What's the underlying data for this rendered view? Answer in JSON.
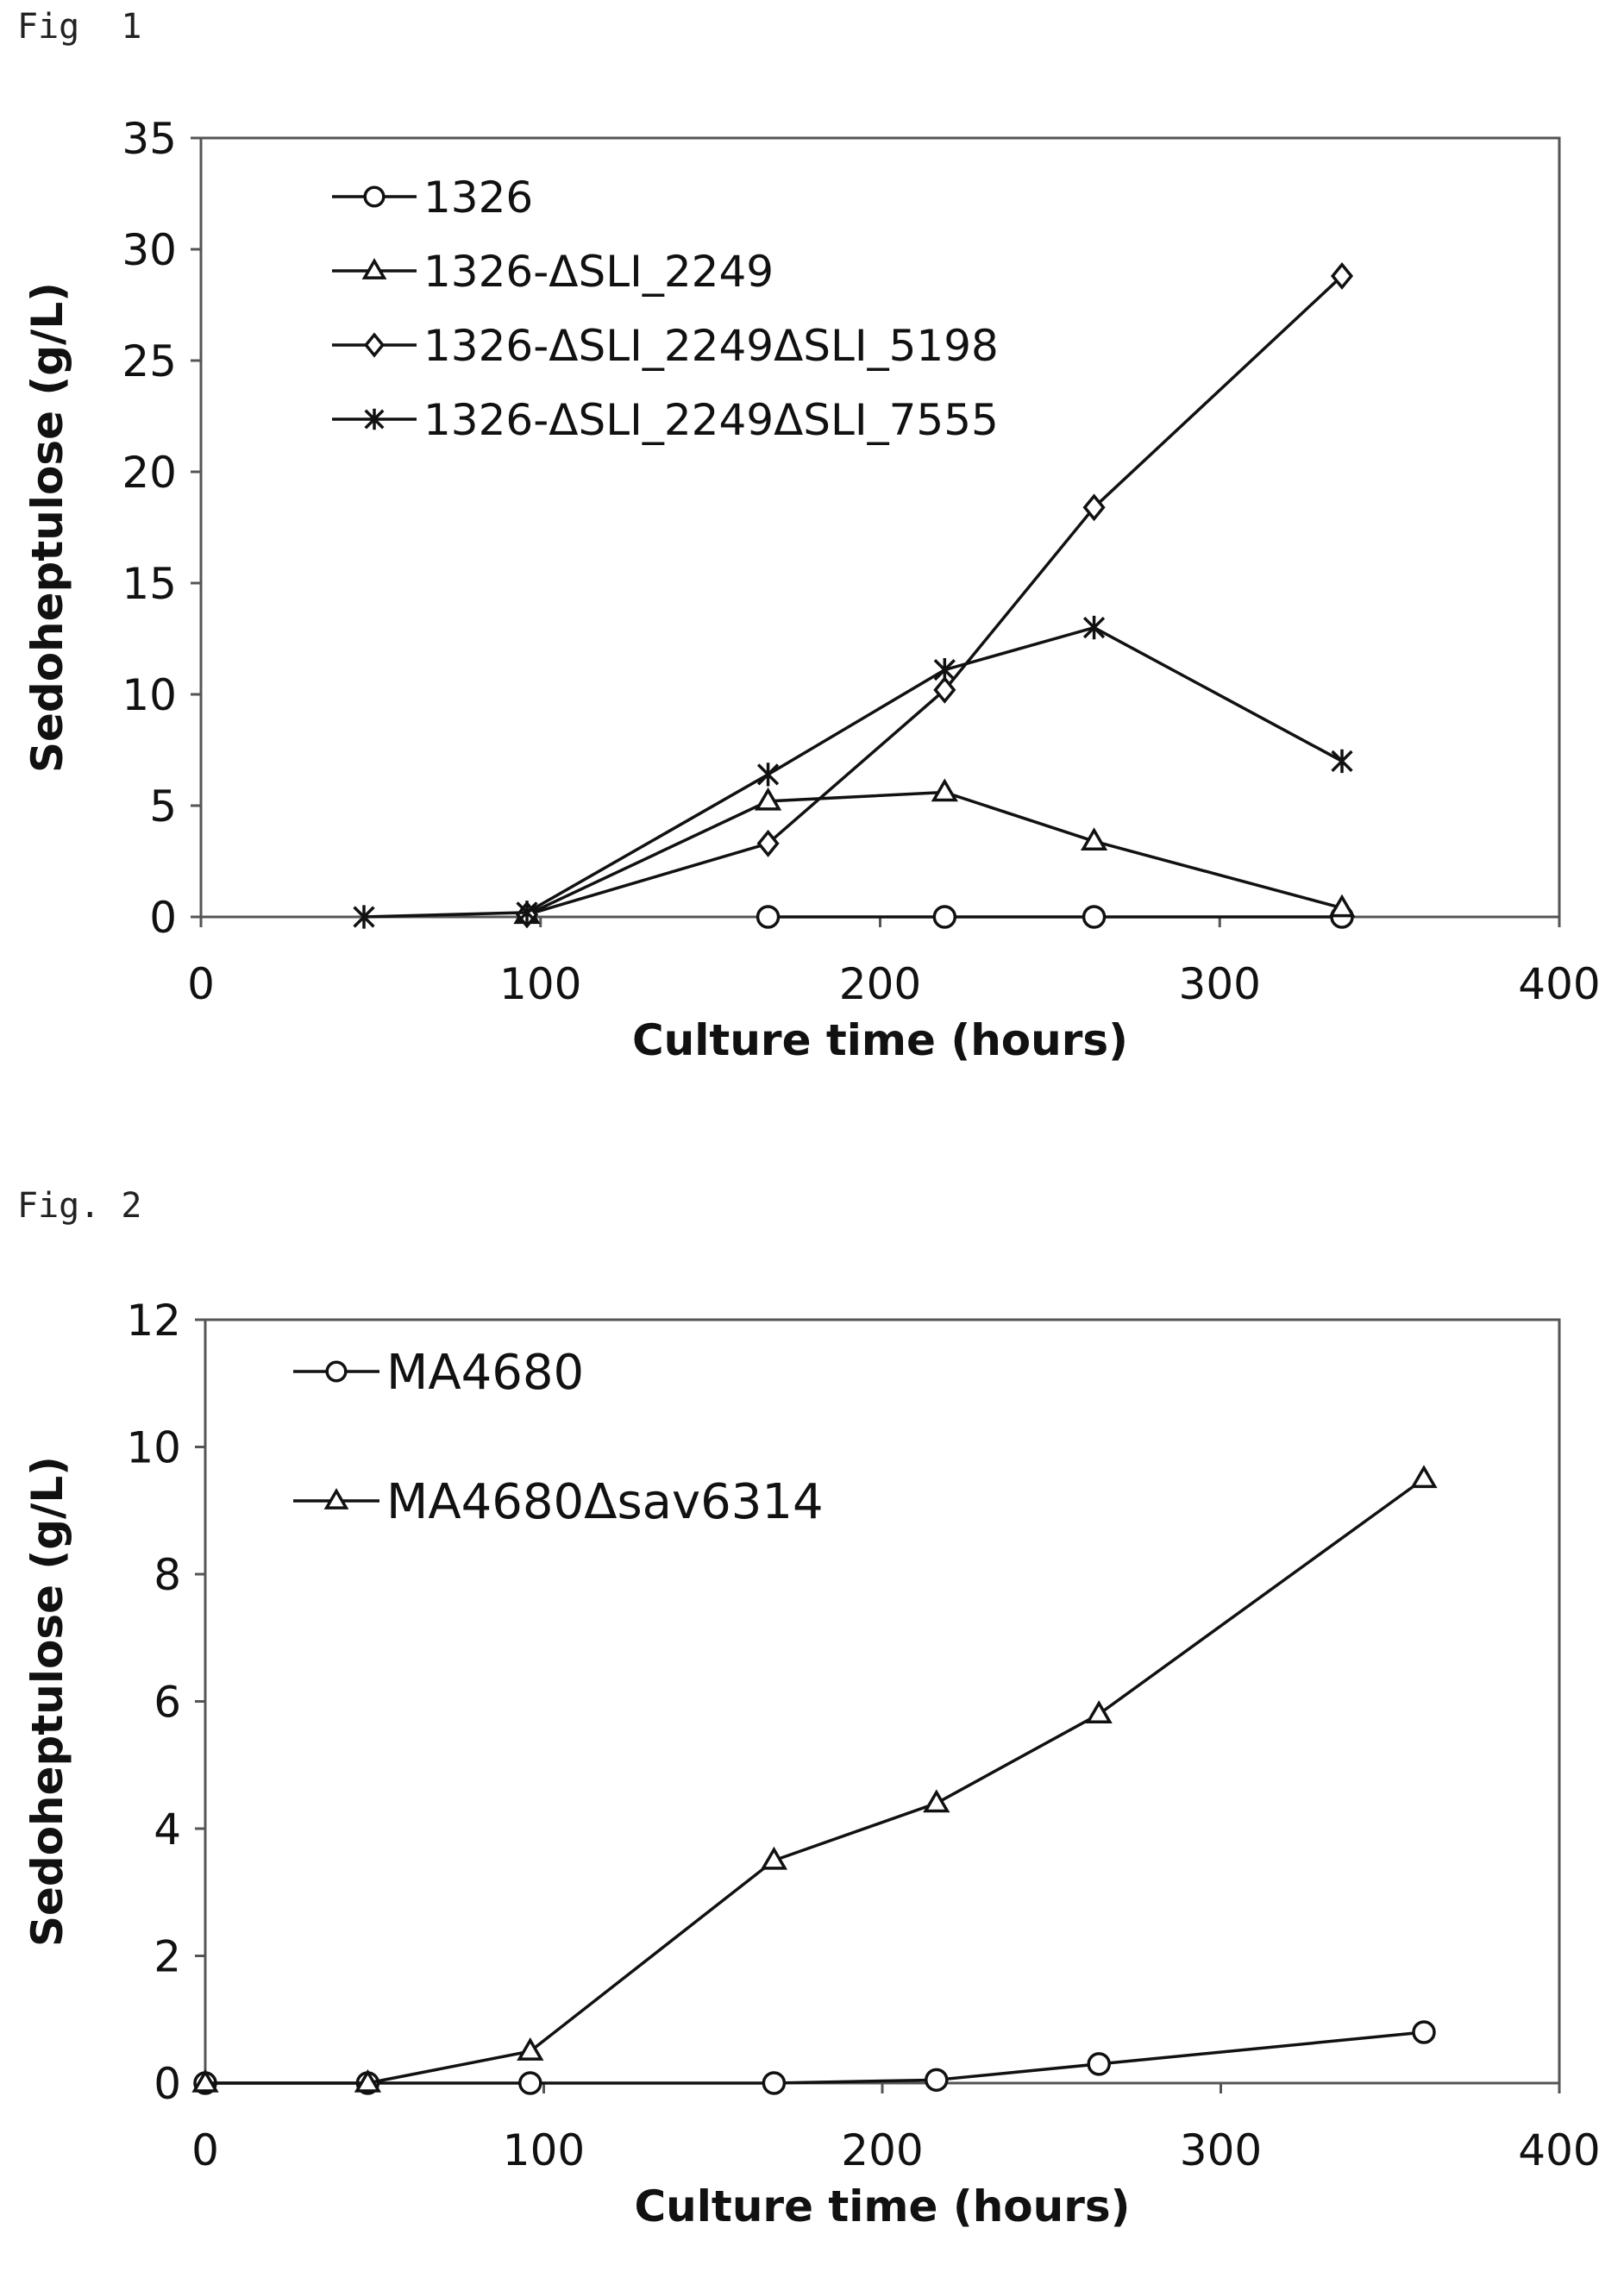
{
  "figures": [
    {
      "label": "Fig  1"
    },
    {
      "label": "Fig. 2"
    }
  ],
  "chart_data": [
    {
      "type": "line",
      "xlabel": "Culture time (hours)",
      "ylabel": "Sedoheptulose (g/L)",
      "xlim": [
        0,
        400
      ],
      "ylim": [
        0,
        35
      ],
      "xticks": [
        0,
        100,
        200,
        300,
        400
      ],
      "yticks": [
        0,
        5,
        10,
        15,
        20,
        25,
        30,
        35
      ],
      "grid": false,
      "legend_position": "top-left",
      "series": [
        {
          "name": "1326",
          "marker": "circle",
          "x": [
            167,
            219,
            263,
            336
          ],
          "y": [
            0,
            0,
            0,
            0
          ]
        },
        {
          "name": "1326-ΔSLI_2249",
          "marker": "triangle",
          "x": [
            96,
            167,
            219,
            263,
            336
          ],
          "y": [
            0.1,
            5.2,
            5.6,
            3.4,
            0.4
          ]
        },
        {
          "name": "1326-ΔSLI_2249ΔSLI_5198",
          "marker": "diamond",
          "x": [
            96,
            167,
            219,
            263,
            336
          ],
          "y": [
            0.1,
            3.3,
            10.2,
            18.4,
            28.8
          ]
        },
        {
          "name": "1326-ΔSLI_2249ΔSLI_7555",
          "marker": "star",
          "x": [
            48,
            96,
            167,
            219,
            263,
            336
          ],
          "y": [
            0,
            0.2,
            6.4,
            11.1,
            13.0,
            7.0
          ]
        }
      ]
    },
    {
      "type": "line",
      "xlabel": "Culture time (hours)",
      "ylabel": "Sedoheptulose (g/L)",
      "xlim": [
        0,
        400
      ],
      "ylim": [
        0,
        12
      ],
      "xticks": [
        0,
        100,
        200,
        300,
        400
      ],
      "yticks": [
        0,
        2,
        4,
        6,
        8,
        10,
        12
      ],
      "grid": false,
      "legend_position": "top-left",
      "series": [
        {
          "name": "MA4680",
          "marker": "circle",
          "x": [
            0,
            48,
            96,
            168,
            216,
            264,
            360
          ],
          "y": [
            0,
            0,
            0,
            0,
            0.05,
            0.3,
            0.8
          ]
        },
        {
          "name": "MA4680Δsav6314",
          "marker": "triangle",
          "x": [
            0,
            48,
            96,
            168,
            216,
            264,
            360
          ],
          "y": [
            0,
            0,
            0.5,
            3.5,
            4.4,
            5.8,
            9.5
          ]
        }
      ]
    }
  ]
}
